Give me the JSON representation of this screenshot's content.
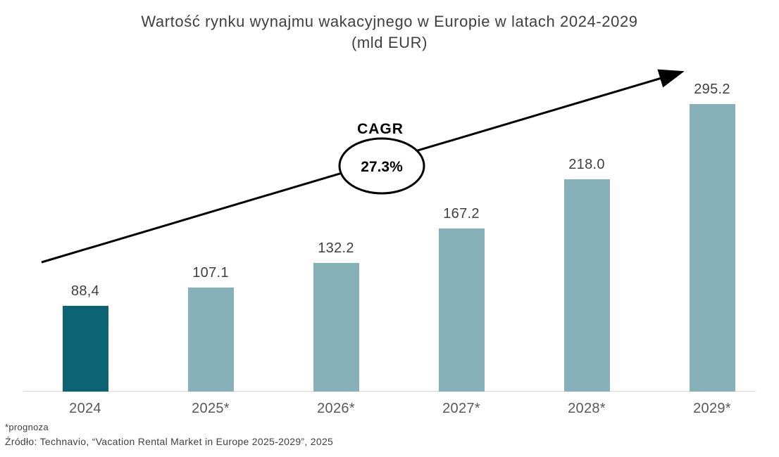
{
  "title": {
    "line1": "Wartość rynku wynajmu wakacyjnego w Europie w latach 2024-2029",
    "line2": "(mld EUR)"
  },
  "chart_data": {
    "type": "bar",
    "title": "Wartość rynku wynajmu wakacyjnego w Europie w latach 2024-2029 (mld EUR)",
    "categories": [
      "2024",
      "2025*",
      "2026*",
      "2027*",
      "2028*",
      "2029*"
    ],
    "values": [
      88.4,
      107.1,
      132.2,
      167.2,
      218.0,
      295.2
    ],
    "value_labels": [
      "88,4",
      "107.1",
      "132.2",
      "167.2",
      "218.0",
      "295.2"
    ],
    "bar_colors": [
      "#0b6373",
      "#86b1b9",
      "#86b1b9",
      "#86b1b9",
      "#86b1b9",
      "#86b1b9"
    ],
    "xlabel": "",
    "ylabel": "",
    "ylim": [
      0,
      310
    ],
    "grid": false,
    "legend": "none",
    "annotation": {
      "label": "CAGR",
      "value": "27.3%"
    }
  },
  "annotation": {
    "cagr_label": "CAGR",
    "cagr_value": "27.3%"
  },
  "footnotes": {
    "prognoza": "*prognoza",
    "source": "Źródło: Technavio, “Vacation Rental Market in Europe 2025-2029”, 2025"
  },
  "colors": {
    "bar_2024": "#0b6373",
    "bar_forecast": "#86b1b9",
    "text_primary": "#3f3f3f",
    "text_axis": "#595959",
    "axis_line": "#d9d9d9",
    "arrow": "#000000",
    "ellipse_fill": "#ffffff"
  }
}
